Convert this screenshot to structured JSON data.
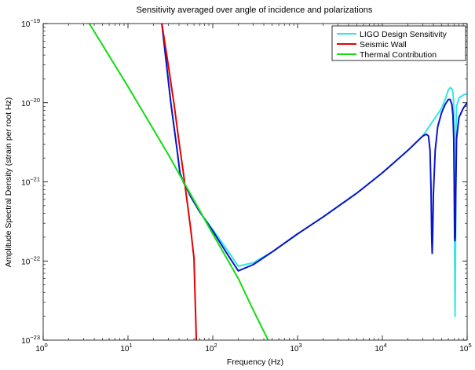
{
  "chart_data": {
    "type": "line",
    "title": "Sensitivity averaged over angle of incidence and polarizations",
    "xlabel": "Frequency (Hz)",
    "ylabel": "Amplitude Spectral Density (strain per root Hz)",
    "xscale": "log",
    "yscale": "log",
    "xlim": [
      1,
      100000
    ],
    "ylim": [
      1e-23,
      1e-19
    ],
    "x_ticks": [
      {
        "value": 1,
        "mant": "10",
        "exp": "0"
      },
      {
        "value": 10,
        "mant": "10",
        "exp": "1"
      },
      {
        "value": 100,
        "mant": "10",
        "exp": "2"
      },
      {
        "value": 1000,
        "mant": "10",
        "exp": "3"
      },
      {
        "value": 10000,
        "mant": "10",
        "exp": "4"
      },
      {
        "value": 100000,
        "mant": "10",
        "exp": "5"
      }
    ],
    "y_ticks": [
      {
        "value": 1e-23,
        "mant": "10",
        "exp": "−23"
      },
      {
        "value": 1e-22,
        "mant": "10",
        "exp": "−22"
      },
      {
        "value": 1e-21,
        "mant": "10",
        "exp": "−21"
      },
      {
        "value": 1e-20,
        "mant": "10",
        "exp": "−20"
      },
      {
        "value": 1e-19,
        "mant": "10",
        "exp": "−19"
      }
    ],
    "grid": false,
    "legend_position": "top-right",
    "series": [
      {
        "name": "LIGO Design Sensitivity",
        "color": "#33e6e6",
        "x": [
          25.1,
          32,
          38,
          41,
          45,
          55,
          70,
          100,
          150,
          200,
          300,
          500,
          1000,
          2000,
          5000,
          10000,
          20000,
          30000,
          40000,
          50000,
          55000,
          60000,
          63000,
          66000,
          68000,
          69000,
          70000,
          71000,
          72000,
          73000,
          74000,
          75000,
          80000,
          90000,
          100000
        ],
        "y": [
          1e-19,
          1e-20,
          2.5e-21,
          1.3e-21,
          1e-21,
          6.5e-22,
          4.2e-22,
          2.5e-22,
          1.35e-22,
          8.6e-23,
          9.5e-23,
          1.3e-22,
          2.2e-22,
          3.6e-22,
          7.2e-22,
          1.3e-21,
          2.5e-21,
          3.8e-21,
          6e-21,
          8.5e-21,
          1.1e-20,
          1.45e-20,
          1.55e-20,
          1.5e-20,
          1.35e-20,
          1.1e-20,
          5e-21,
          2e-22,
          2e-23,
          2e-22,
          5e-21,
          9e-21,
          1.15e-20,
          1.25e-20,
          1.3e-20
        ]
      },
      {
        "name": "",
        "color": "#0a14c8",
        "x": [
          25.1,
          32,
          38,
          41,
          45,
          55,
          70,
          100,
          150,
          200,
          300,
          500,
          1000,
          2000,
          5000,
          10000,
          20000,
          30000,
          33000,
          35000,
          36500,
          37500,
          38200,
          38700,
          39200,
          40000,
          42000,
          45000,
          50000,
          55000,
          60000,
          63000,
          66000,
          68000,
          69500,
          70500,
          71200,
          71800,
          72500,
          73500,
          75000,
          80000,
          90000,
          100000
        ],
        "y": [
          1e-19,
          1e-20,
          2.5e-21,
          1.3e-21,
          1e-21,
          6.5e-22,
          4.2e-22,
          2.4e-22,
          1.2e-22,
          7.5e-23,
          9e-23,
          1.3e-22,
          2.2e-22,
          3.6e-22,
          7.2e-22,
          1.3e-21,
          2.5e-21,
          3.8e-21,
          4e-21,
          3.8e-21,
          2.5e-21,
          8e-22,
          2e-22,
          1.25e-22,
          2e-22,
          7e-22,
          2.5e-21,
          5e-21,
          7.5e-21,
          9.5e-21,
          1.1e-20,
          1.1e-20,
          9.5e-21,
          7e-21,
          3.5e-21,
          8e-22,
          2e-22,
          1.8e-22,
          2e-22,
          8e-22,
          3.5e-21,
          6.5e-21,
          8.5e-21,
          1e-20
        ]
      },
      {
        "name": "Seismic Wall",
        "color": "#e60000",
        "x": [
          25.1,
          30,
          35,
          40,
          45,
          50,
          55,
          60,
          64
        ],
        "y": [
          1e-19,
          2.9e-20,
          9.5e-21,
          3.2e-21,
          1.3e-21,
          5.5e-22,
          2.5e-22,
          1.1e-22,
          1e-23
        ]
      },
      {
        "name": "Thermal Contribution",
        "color": "#14dc14",
        "x": [
          3.5,
          10,
          30,
          100,
          200,
          300,
          450
        ],
        "y": [
          1e-19,
          1.6e-20,
          2.2e-21,
          2.2e-22,
          6e-23,
          2.4e-23,
          1e-23
        ]
      }
    ]
  }
}
